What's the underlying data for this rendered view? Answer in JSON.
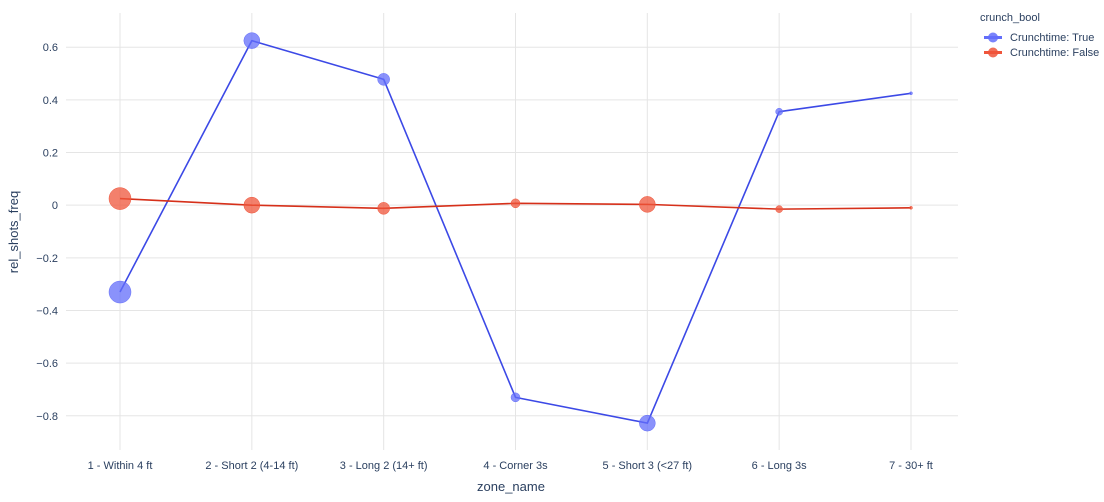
{
  "chart_data": {
    "type": "line",
    "xlabel": "zone_name",
    "ylabel": "rel_shots_freq",
    "categories": [
      "1 - Within 4 ft",
      "2 - Short 2 (4-14 ft)",
      "3 - Long 2 (14+ ft)",
      "4 - Corner 3s",
      "5 - Short 3 (<27 ft)",
      "6 - Long 3s",
      "7 - 30+ ft"
    ],
    "ylim": [
      -0.93,
      0.73
    ],
    "yticks": [
      0.6,
      0.4,
      0.2,
      0,
      -0.2,
      -0.4,
      -0.6,
      -0.8
    ],
    "ytick_labels": [
      "0.6",
      "0.4",
      "0.2",
      "0",
      "−0.2",
      "−0.4",
      "−0.6",
      "−0.8"
    ],
    "grid": true,
    "legend": {
      "title": "crunch_bool",
      "placement": "top-right"
    },
    "series": [
      {
        "name": "Crunchtime: True",
        "color": "#636efa",
        "line_color": "#3c49e6",
        "values": [
          -0.33,
          0.625,
          0.478,
          -0.73,
          -0.828,
          0.355,
          0.425
        ],
        "marker_sizes": [
          22,
          16,
          12,
          9,
          16,
          7,
          3
        ]
      },
      {
        "name": "Crunchtime: False",
        "color": "#ef553b",
        "line_color": "#d6301a",
        "values": [
          0.025,
          0.0,
          -0.012,
          0.007,
          0.003,
          -0.015,
          -0.01
        ],
        "marker_sizes": [
          22,
          16,
          12,
          9,
          16,
          7,
          3
        ]
      }
    ]
  }
}
